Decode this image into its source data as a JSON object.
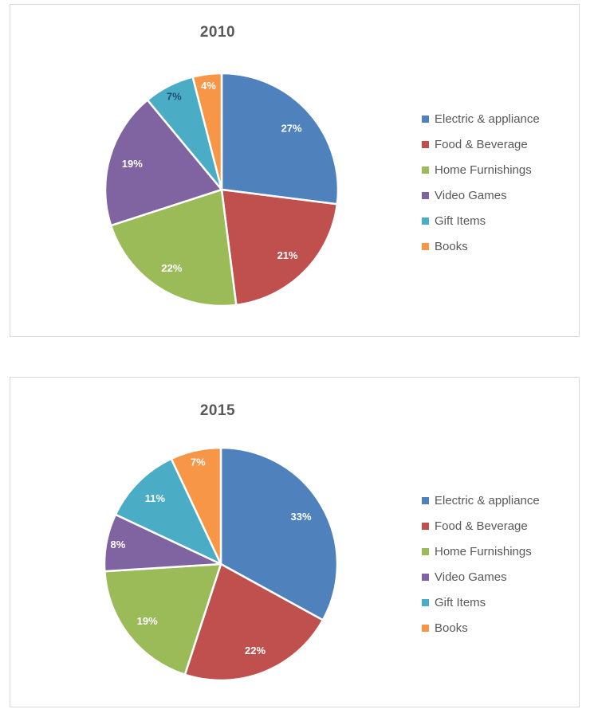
{
  "page": {
    "background": "#ffffff",
    "box_border_color": "#d8d8d8",
    "title_color": "#595959",
    "legend_text_color": "#595959"
  },
  "chart_data": [
    {
      "type": "pie",
      "title": "2010",
      "categories": [
        "Electric & appliance",
        "Food & Beverage",
        "Home Furnishings",
        "Video Games",
        "Gift Items",
        "Books"
      ],
      "values": [
        27,
        21,
        22,
        19,
        7,
        4
      ],
      "labels": [
        "27%",
        "21%",
        "22%",
        "19%",
        "7%",
        "4%"
      ],
      "colors": [
        "#4F81BD",
        "#C0504D",
        "#9BBB59",
        "#8064A2",
        "#4BACC6",
        "#F79646"
      ],
      "label_colors": [
        "#FFFFFF",
        "#FFFFFF",
        "#FFFFFF",
        "#FFFFFF",
        "#1F4E79",
        "#FFFFFF"
      ],
      "legend_position": "right",
      "start_angle_deg": 0,
      "direction": "clockwise"
    },
    {
      "type": "pie",
      "title": "2015",
      "categories": [
        "Electric & appliance",
        "Food & Beverage",
        "Home Furnishings",
        "Video Games",
        "Gift Items",
        "Books"
      ],
      "values": [
        33,
        22,
        19,
        8,
        11,
        7
      ],
      "labels": [
        "33%",
        "22%",
        "19%",
        "8%",
        "11%",
        "7%"
      ],
      "colors": [
        "#4F81BD",
        "#C0504D",
        "#9BBB59",
        "#8064A2",
        "#4BACC6",
        "#F79646"
      ],
      "label_colors": [
        "#FFFFFF",
        "#FFFFFF",
        "#FFFFFF",
        "#FFFFFF",
        "#FFFFFF",
        "#FFFFFF"
      ],
      "legend_position": "right",
      "start_angle_deg": 0,
      "direction": "clockwise"
    }
  ]
}
